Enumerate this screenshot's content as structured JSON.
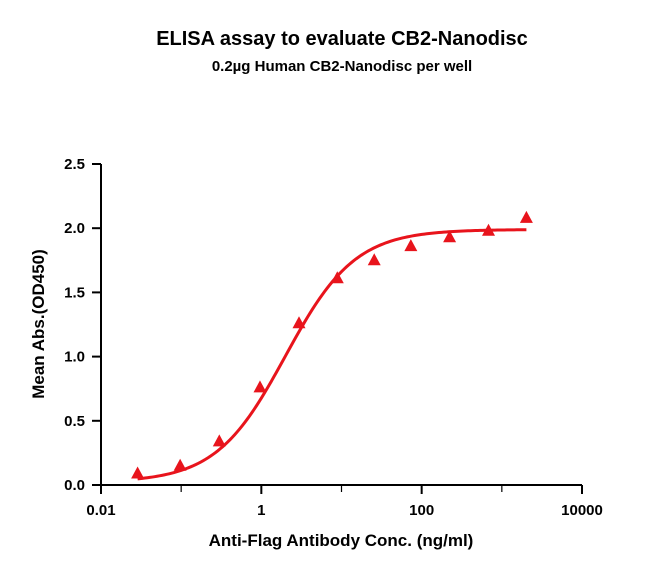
{
  "chart_data": {
    "type": "scatter",
    "title": "ELISA assay to evaluate CB2-Nanodisc",
    "subtitle": "0.2µg Human CB2-Nanodisc per well",
    "xlabel": "Anti-Flag Antibody Conc. (ng/ml)",
    "ylabel": "Mean Abs.(OD450)",
    "xscale": "log",
    "xlim": [
      0.01,
      10000
    ],
    "ylim": [
      0,
      2.5
    ],
    "x_ticks": [
      0.01,
      1,
      100,
      10000
    ],
    "x_tick_labels": [
      "0.01",
      "1",
      "100",
      "10000"
    ],
    "y_ticks": [
      0,
      0.5,
      1,
      1.5,
      2,
      2.5
    ],
    "y_tick_labels": [
      "0.0",
      "0.5",
      "1.0",
      "1.5",
      "2.0",
      "2.5"
    ],
    "grid": false,
    "color": "#e8141c",
    "marker": "triangle",
    "series": [
      {
        "x": [
          0.0286,
          0.0971,
          0.299,
          0.962,
          2.95,
          8.86,
          25.6,
          73.3,
          223,
          682,
          2025
        ],
        "y": [
          0.09,
          0.15,
          0.34,
          0.76,
          1.26,
          1.61,
          1.75,
          1.86,
          1.93,
          1.98,
          2.08
        ]
      }
    ],
    "fit": {
      "model": "4PL",
      "bottom": 0.02,
      "top": 1.99,
      "ec50": 2.0,
      "hill": 1.0,
      "x_range": [
        0.0286,
        2025
      ]
    }
  }
}
